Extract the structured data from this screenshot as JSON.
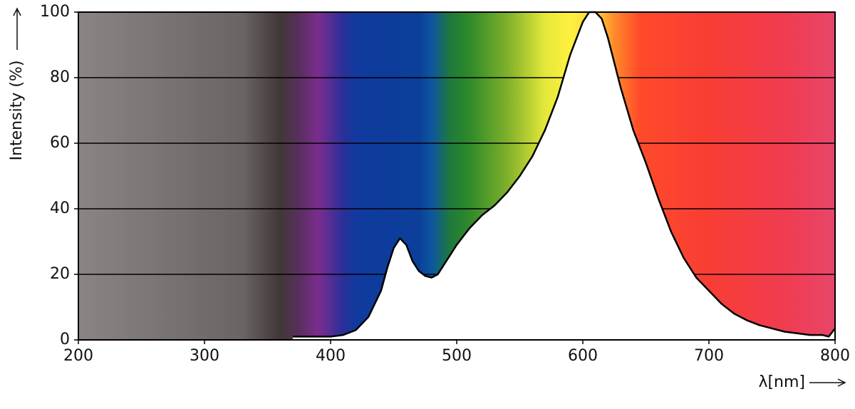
{
  "chart_data": {
    "type": "area",
    "ylabel": "Intensity (%)",
    "xlabel": "λ[nm]",
    "x": [
      370,
      380,
      390,
      400,
      410,
      420,
      430,
      440,
      445,
      450,
      455,
      460,
      465,
      470,
      475,
      480,
      485,
      490,
      500,
      510,
      520,
      530,
      540,
      550,
      560,
      570,
      580,
      590,
      600,
      605,
      610,
      615,
      620,
      630,
      640,
      650,
      660,
      670,
      680,
      690,
      700,
      710,
      720,
      730,
      740,
      750,
      760,
      770,
      780,
      790,
      795,
      800
    ],
    "values": [
      1,
      1,
      1,
      1,
      1.5,
      3,
      7,
      15,
      22,
      28,
      31,
      29,
      24,
      21,
      19.5,
      19,
      20,
      23,
      29,
      34,
      38,
      41,
      45,
      50,
      56,
      64,
      74,
      87,
      97,
      100,
      100,
      98,
      92,
      77,
      64,
      54,
      43,
      33,
      25,
      19,
      15,
      11,
      8,
      6,
      4.5,
      3.5,
      2.5,
      2,
      1.5,
      1.5,
      1,
      3.5
    ],
    "color": "#000000",
    "fill": "#ffffff",
    "xlim": [
      200,
      800
    ],
    "xticks": [
      200,
      300,
      400,
      500,
      600,
      700,
      800
    ],
    "ylim": [
      0,
      100
    ],
    "yticks": [
      0,
      20,
      40,
      60,
      80,
      100
    ],
    "grid": true
  }
}
